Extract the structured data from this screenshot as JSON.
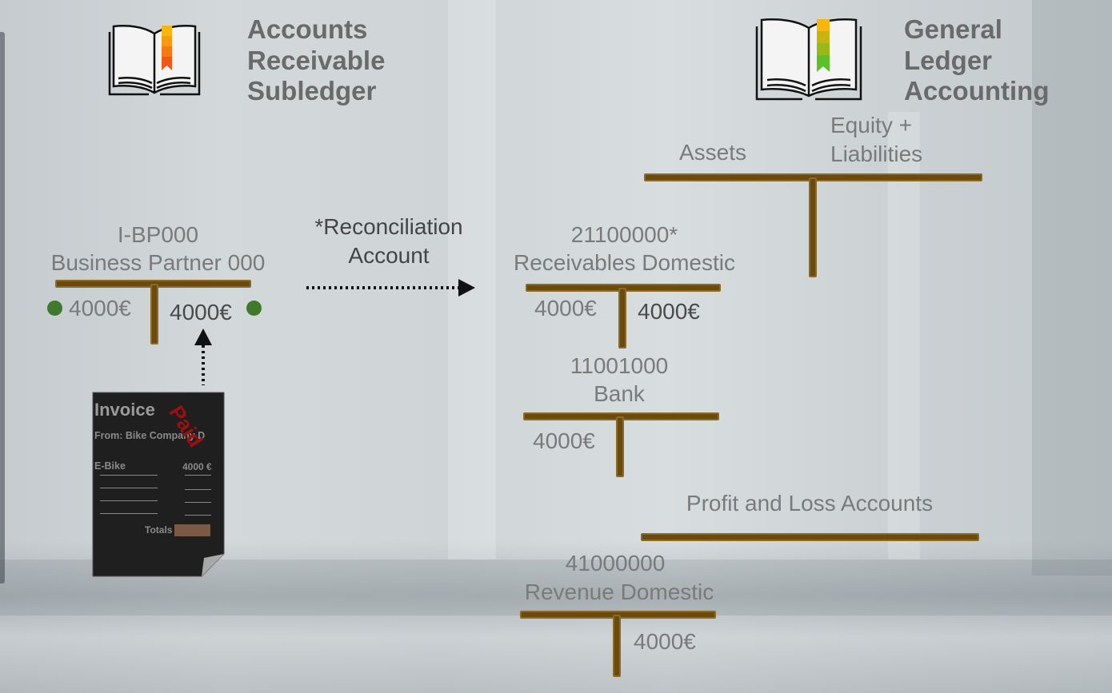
{
  "subledger": {
    "title_lines": [
      "Accounts",
      "Receivable",
      "Subledger"
    ]
  },
  "general_ledger": {
    "title_lines": [
      "General",
      "Ledger",
      "Accounting"
    ]
  },
  "balance_sheet": {
    "left_label": "Assets",
    "right_label_lines": [
      "Equity +",
      "Liabilities"
    ]
  },
  "business_partner": {
    "id": "I-BP000",
    "name": "Business Partner 000",
    "debit": "4000€",
    "credit": "4000€"
  },
  "reconciliation": {
    "label_lines": [
      "*Reconciliation",
      "Account"
    ]
  },
  "receivables": {
    "number": "21100000*",
    "name": "Receivables Domestic",
    "debit": "4000€",
    "credit": "4000€"
  },
  "bank": {
    "number": "11001000",
    "name": "Bank",
    "debit": "4000€"
  },
  "pl": {
    "title": "Profit and Loss Accounts"
  },
  "revenue": {
    "number": "41000000",
    "name": "Revenue Domestic",
    "credit": "4000€"
  },
  "invoice": {
    "title": "Invoice",
    "from": "From: Bike Company D",
    "item": "E-Bike",
    "price": "4000 €",
    "totals_label": "Totals",
    "stamp": "Paid"
  },
  "colors": {
    "t_account": "#6b4a0c",
    "status_dot": "#3f7a2c",
    "stamp": "#9c1010"
  }
}
